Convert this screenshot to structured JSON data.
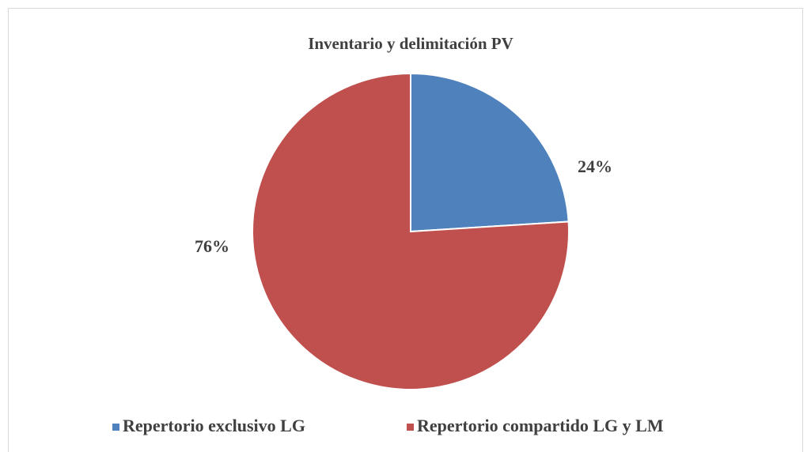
{
  "chart_data": {
    "type": "pie",
    "title": "Inventario y delimitación PV",
    "categories": [
      "Repertorio exclusivo LG",
      "Repertorio compartido LG y LM"
    ],
    "values": [
      24,
      76
    ],
    "value_labels": [
      "24%",
      "76%"
    ],
    "colors": [
      "#4f81bd",
      "#c0504d"
    ],
    "legend": "bottom"
  }
}
